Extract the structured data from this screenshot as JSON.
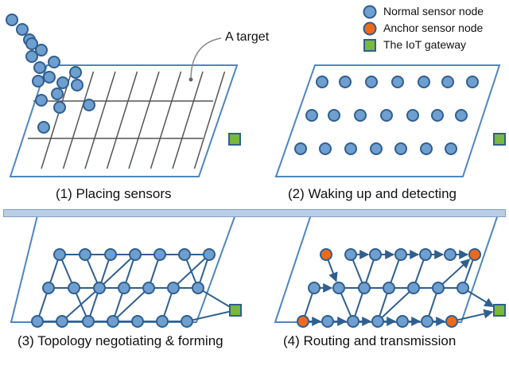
{
  "colors": {
    "normal_fill": "#6f9fcf",
    "normal_stroke": "#2f5f8f",
    "anchor_fill": "#ee6a1a",
    "anchor_stroke": "#2f5f8f",
    "gateway_fill": "#79b83b",
    "gateway_stroke": "#2f5f8f",
    "panel_stroke": "#4e86bf",
    "link": "#2f5f8f",
    "grid": "#555555",
    "separator": "#b9cde5"
  },
  "legend": {
    "normal": "Normal sensor node",
    "anchor": "Anchor sensor node",
    "gateway": "The IoT gateway"
  },
  "panel1": {
    "caption": "(1) Placing sensors",
    "target_label": "A target"
  },
  "panel2": {
    "caption": "(2) Waking up and detecting"
  },
  "panel3": {
    "caption": "(3) Topology negotiating & forming"
  },
  "panel4": {
    "caption": "(4) Routing and transmission"
  }
}
